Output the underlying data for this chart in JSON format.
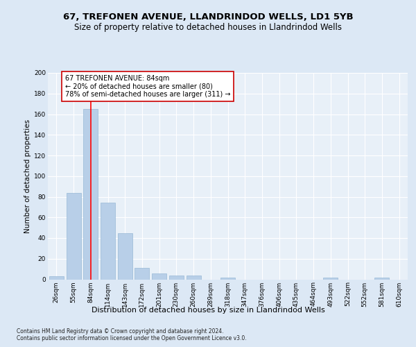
{
  "title1": "67, TREFONEN AVENUE, LLANDRINDOD WELLS, LD1 5YB",
  "title2": "Size of property relative to detached houses in Llandrindod Wells",
  "xlabel": "Distribution of detached houses by size in Llandrindod Wells",
  "ylabel": "Number of detached properties",
  "footnote": "Contains HM Land Registry data © Crown copyright and database right 2024.\nContains public sector information licensed under the Open Government Licence v3.0.",
  "categories": [
    "26sqm",
    "55sqm",
    "84sqm",
    "114sqm",
    "143sqm",
    "172sqm",
    "201sqm",
    "230sqm",
    "260sqm",
    "289sqm",
    "318sqm",
    "347sqm",
    "376sqm",
    "406sqm",
    "435sqm",
    "464sqm",
    "493sqm",
    "522sqm",
    "552sqm",
    "581sqm",
    "610sqm"
  ],
  "values": [
    3,
    84,
    165,
    74,
    45,
    11,
    6,
    4,
    4,
    0,
    2,
    0,
    0,
    0,
    0,
    0,
    2,
    0,
    0,
    2,
    0
  ],
  "bar_color": "#b8cfe8",
  "bar_edge_color": "#8aafd0",
  "vline_x": 2,
  "vline_color": "red",
  "annotation_text": "67 TREFONEN AVENUE: 84sqm\n← 20% of detached houses are smaller (80)\n78% of semi-detached houses are larger (311) →",
  "annotation_box_color": "white",
  "annotation_box_edge": "#cc0000",
  "ylim": [
    0,
    200
  ],
  "yticks": [
    0,
    20,
    40,
    60,
    80,
    100,
    120,
    140,
    160,
    180,
    200
  ],
  "bg_color": "#dce8f5",
  "plot_bg_color": "#e8f0f8",
  "title1_fontsize": 9.5,
  "title2_fontsize": 8.5,
  "xlabel_fontsize": 8,
  "ylabel_fontsize": 7.5,
  "tick_fontsize": 6.5,
  "annotation_fontsize": 7,
  "footnote_fontsize": 5.5
}
